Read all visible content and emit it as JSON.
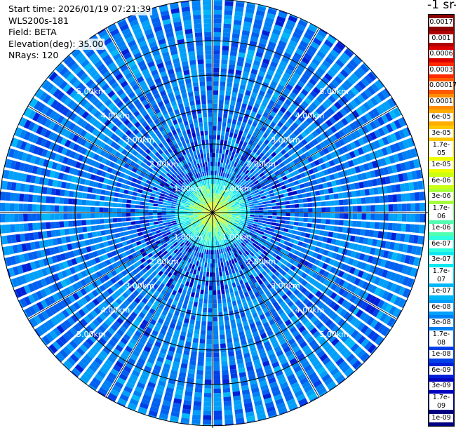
{
  "info": {
    "start_time": "Start time: 2026/01/19 07:21:39",
    "instrument": "WLS200s-181",
    "field": "Field: BETA",
    "elevation": "Elevation(deg): 35.00",
    "nrays": "NRays: 120"
  },
  "colorbar": {
    "unit_title": "-1 sr-",
    "labels": [
      "0.0017",
      "0.001",
      "0.0006",
      "0.0003",
      "0.00017",
      "0.0001",
      "6e-05",
      "3e-05",
      "1.7e-05",
      "1e-05",
      "6e-06",
      "3e-06",
      "1.7e-06",
      "1e-06",
      "6e-07",
      "3e-07",
      "1.7e-07",
      "1e-07",
      "6e-08",
      "3e-08",
      "1.7e-08",
      "1e-08",
      "6e-09",
      "3e-09",
      "1.7e-09",
      "1e-09"
    ],
    "colors": [
      "#8b0000",
      "#b00000",
      "#dd0000",
      "#ff2a00",
      "#ff5a00",
      "#ff8c00",
      "#ffae00",
      "#ffc800",
      "#ffe000",
      "#eeff00",
      "#ccff10",
      "#a8ff40",
      "#80ff80",
      "#50ffb0",
      "#30ffe0",
      "#10e8f0",
      "#00d0f5",
      "#00b8f8",
      "#00a0fa",
      "#0080f5",
      "#0060f0",
      "#0040e8",
      "#0020d8",
      "#0000c0",
      "#0000a0",
      "#000080"
    ]
  },
  "chart_data": {
    "type": "heatmap",
    "subtype": "polar-ppi",
    "field": "BETA",
    "n_rays": 120,
    "elevation_deg": 35.0,
    "range_km": [
      0,
      6.2
    ],
    "range_rings_km": [
      1,
      2,
      3,
      4,
      5
    ],
    "ring_labels": [
      "1.00km",
      "2.00km",
      "3.00km",
      "4.00km",
      "5.00km"
    ],
    "spoke_angles_deg": [
      0,
      30,
      60,
      90,
      120,
      150,
      180,
      210,
      240,
      270,
      300,
      330
    ],
    "color_scale": "log",
    "value_range": [
      1e-09,
      0.0017
    ],
    "background_value_typical": 3e-08,
    "near_field_peak_value": 1e-05,
    "near_field_radius_km": 1.0
  }
}
